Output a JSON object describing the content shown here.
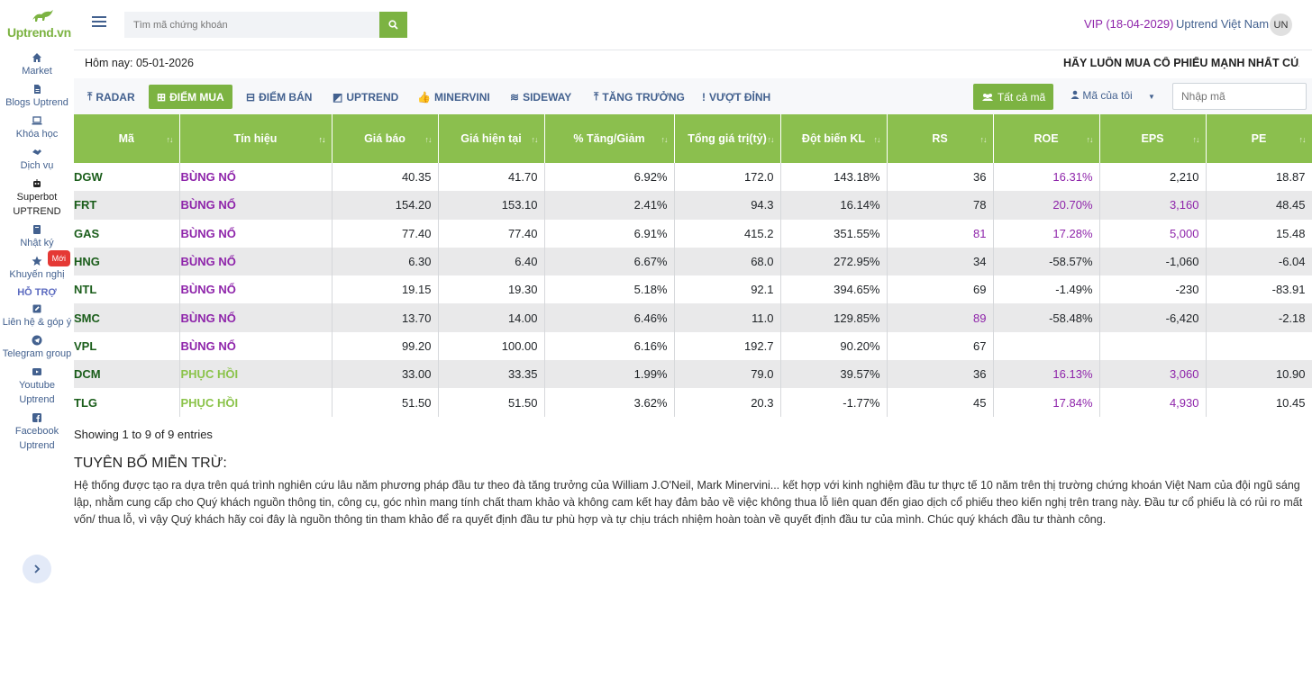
{
  "brand": {
    "logo_text": "Uptrend.vn",
    "accent": "#7cb342"
  },
  "sidebar": {
    "items": [
      {
        "label": "Market",
        "icon": "home-icon"
      },
      {
        "label": "Blogs Uptrend",
        "icon": "file-icon"
      },
      {
        "label": "Khóa học",
        "icon": "laptop-icon"
      },
      {
        "label": "Dịch vụ",
        "icon": "handshake-icon"
      },
      {
        "label": "Superbot UPTREND",
        "icon": "robot-icon"
      },
      {
        "label": "Nhật ký",
        "icon": "book-icon"
      },
      {
        "label": "Khuyến nghị",
        "icon": "star-icon",
        "badge": "Mới"
      }
    ],
    "section_label": "HỖ TRỢ",
    "support_items": [
      {
        "label": "Liên hệ & góp ý",
        "icon": "edit-icon"
      },
      {
        "label": "Telegram group",
        "icon": "telegram-icon"
      },
      {
        "label": "Youtube Uptrend",
        "icon": "youtube-icon"
      },
      {
        "label": "Facebook Uptrend",
        "icon": "facebook-icon"
      }
    ]
  },
  "header": {
    "search_placeholder": "Tìm mã chứng khoán",
    "vip": "VIP (18-04-2029)",
    "user_name": "Uptrend Việt Nam",
    "avatar_initials": "UN"
  },
  "today": "Hôm nay: 05-01-2026",
  "marquee": "HÃY LUÔN MUA CỔ PHIẾU MẠNH NHẤT CỦA D",
  "tabs": [
    {
      "label": "RADAR",
      "icon": "⤒"
    },
    {
      "label": "ĐIỂM MUA",
      "icon": "⊞",
      "active": true
    },
    {
      "label": "ĐIỂM BÁN",
      "icon": "⊟"
    },
    {
      "label": "UPTREND",
      "icon": "◩"
    },
    {
      "label": "MINERVINI",
      "icon": "👍"
    },
    {
      "label": "SIDEWAY",
      "icon": "≋"
    },
    {
      "label": "TĂNG TRƯỞNG",
      "icon": "⤒"
    },
    {
      "label": "VƯỢT ĐỈNH",
      "icon": "!"
    }
  ],
  "filter": {
    "all_label": "Tất cả mã",
    "my_codes_label": "Mã của tôi",
    "code_placeholder": "Nhập mã"
  },
  "table": {
    "columns": [
      "Mã",
      "Tín hiệu",
      "Giá báo",
      "Giá hiện tại",
      "% Tăng/Giảm",
      "Tổng giá trị(tỷ)",
      "Đột biến KL",
      "RS",
      "ROE",
      "EPS",
      "PE"
    ],
    "rows": [
      {
        "code": "DGW",
        "signal": "BÙNG NỔ",
        "sig_type": "p",
        "price_alert": "40.35",
        "price_now": "41.70",
        "change": "6.92%",
        "value": "172.0",
        "vol": "143.18%",
        "rs": "36",
        "rs_hi": false,
        "roe": "16.31%",
        "roe_hi": true,
        "eps": "2,210",
        "eps_hi": false,
        "pe": "18.87"
      },
      {
        "code": "FRT",
        "signal": "BÙNG NỔ",
        "sig_type": "p",
        "price_alert": "154.20",
        "price_now": "153.10",
        "change": "2.41%",
        "value": "94.3",
        "vol": "16.14%",
        "rs": "78",
        "rs_hi": false,
        "roe": "20.70%",
        "roe_hi": true,
        "eps": "3,160",
        "eps_hi": true,
        "pe": "48.45"
      },
      {
        "code": "GAS",
        "signal": "BÙNG NỔ",
        "sig_type": "p",
        "price_alert": "77.40",
        "price_now": "77.40",
        "change": "6.91%",
        "value": "415.2",
        "vol": "351.55%",
        "rs": "81",
        "rs_hi": true,
        "roe": "17.28%",
        "roe_hi": true,
        "eps": "5,000",
        "eps_hi": true,
        "pe": "15.48"
      },
      {
        "code": "HNG",
        "signal": "BÙNG NỔ",
        "sig_type": "p",
        "price_alert": "6.30",
        "price_now": "6.40",
        "change": "6.67%",
        "value": "68.0",
        "vol": "272.95%",
        "rs": "34",
        "rs_hi": false,
        "roe": "-58.57%",
        "roe_hi": false,
        "eps": "-1,060",
        "eps_hi": false,
        "pe": "-6.04"
      },
      {
        "code": "NTL",
        "signal": "BÙNG NỔ",
        "sig_type": "p",
        "price_alert": "19.15",
        "price_now": "19.30",
        "change": "5.18%",
        "value": "92.1",
        "vol": "394.65%",
        "rs": "69",
        "rs_hi": false,
        "roe": "-1.49%",
        "roe_hi": false,
        "eps": "-230",
        "eps_hi": false,
        "pe": "-83.91"
      },
      {
        "code": "SMC",
        "signal": "BÙNG NỔ",
        "sig_type": "p",
        "price_alert": "13.70",
        "price_now": "14.00",
        "change": "6.46%",
        "value": "11.0",
        "vol": "129.85%",
        "rs": "89",
        "rs_hi": true,
        "roe": "-58.48%",
        "roe_hi": false,
        "eps": "-6,420",
        "eps_hi": false,
        "pe": "-2.18"
      },
      {
        "code": "VPL",
        "signal": "BÙNG NỔ",
        "sig_type": "p",
        "price_alert": "99.20",
        "price_now": "100.00",
        "change": "6.16%",
        "value": "192.7",
        "vol": "90.20%",
        "rs": "67",
        "rs_hi": false,
        "roe": "",
        "roe_hi": false,
        "eps": "",
        "eps_hi": false,
        "pe": ""
      },
      {
        "code": "DCM",
        "signal": "PHỤC HỒI",
        "sig_type": "g",
        "price_alert": "33.00",
        "price_now": "33.35",
        "change": "1.99%",
        "value": "79.0",
        "vol": "39.57%",
        "rs": "36",
        "rs_hi": false,
        "roe": "16.13%",
        "roe_hi": true,
        "eps": "3,060",
        "eps_hi": true,
        "pe": "10.90"
      },
      {
        "code": "TLG",
        "signal": "PHỤC HỒI",
        "sig_type": "g",
        "price_alert": "51.50",
        "price_now": "51.50",
        "change": "3.62%",
        "value": "20.3",
        "vol": "-1.77%",
        "rs": "45",
        "rs_hi": false,
        "roe": "17.84%",
        "roe_hi": true,
        "eps": "4,930",
        "eps_hi": true,
        "pe": "10.45"
      }
    ]
  },
  "showing": "Showing 1 to 9 of 9 entries",
  "disclaimer": {
    "title": "TUYÊN BỐ MIỄN TRỪ:",
    "body": "Hệ thống được tạo ra dựa trên quá trình nghiên cứu lâu năm phương pháp đầu tư theo đà tăng trưởng của William J.O'Neil, Mark Minervini... kết hợp với kinh nghiệm đầu tư thực tế 10 năm trên thị trường chứng khoán Việt Nam của đội ngũ sáng lập, nhằm cung cấp cho Quý khách nguồn thông tin, công cụ, góc nhìn mang tính chất tham khảo và không cam kết hay đảm bảo về việc không thua lỗ liên quan đến giao dịch cổ phiếu theo kiến nghị trên trang này. Đầu tư cổ phiếu là có rủi ro mất vốn/ thua lỗ, vì vậy Quý khách hãy coi đây là nguồn thông tin tham khảo để ra quyết định đầu tư phù hợp và tự chịu trách nhiệm hoàn toàn về quyết định đầu tư của mình. Chúc quý khách đầu tư thành công."
  }
}
